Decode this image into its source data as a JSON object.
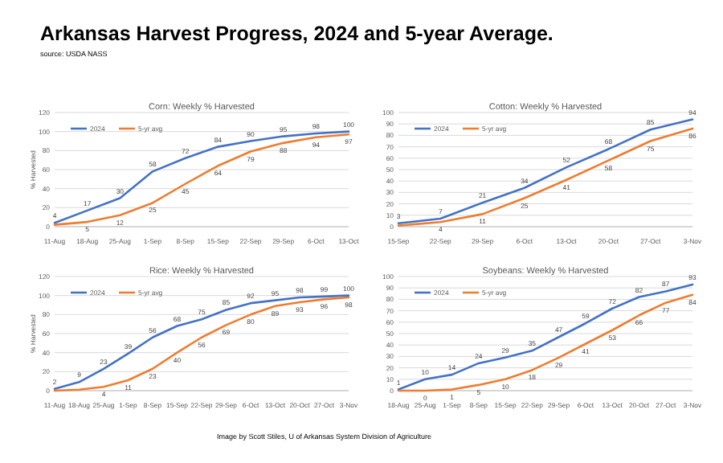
{
  "chart_data": [
    {
      "type": "other",
      "title": "Arkansas Harvest Progress, 2024 and 5-year Average.",
      "subtitle": "source: USDA NASS",
      "annotations": [
        "Image by Scott Stiles, U of Arkansas System Division of Agriculture"
      ]
    },
    {
      "type": "line",
      "title": "Corn: Weekly % Harvested",
      "ylabel": "% Harvested",
      "categories": [
        "11-Aug",
        "18-Aug",
        "25-Aug",
        "1-Sep",
        "8-Sep",
        "15-Sep",
        "22-Sep",
        "29-Sep",
        "6-Oct",
        "13-Oct"
      ],
      "ylim": [
        0,
        120
      ],
      "yticks": [
        0,
        20,
        40,
        60,
        80,
        100,
        120
      ],
      "grid": "y",
      "legend": "top left",
      "series": [
        {
          "name": "2024",
          "color": "#4472c4",
          "values": [
            4,
            17,
            30,
            58,
            72,
            84,
            90,
            95,
            98,
            100
          ],
          "value_labels": [
            "4",
            "17",
            "30",
            "58",
            "72",
            "84",
            "90",
            "95",
            "98",
            "100"
          ]
        },
        {
          "name": "5-yr avg",
          "color": "#ed7d31",
          "values": [
            2,
            5,
            12,
            25,
            45,
            64,
            79,
            88,
            94,
            97
          ],
          "value_labels": [
            null,
            "5",
            "12",
            "25",
            "45",
            "64",
            "79",
            "88",
            "94",
            "97"
          ]
        }
      ]
    },
    {
      "type": "line",
      "title": "Cotton: Weekly % Harvested",
      "categories": [
        "15-Sep",
        "22-Sep",
        "29-Sep",
        "6-Oct",
        "13-Oct",
        "20-Oct",
        "27-Oct",
        "3-Nov"
      ],
      "ylim": [
        0,
        100
      ],
      "yticks": [
        0,
        10,
        20,
        30,
        40,
        50,
        60,
        70,
        80,
        90,
        100
      ],
      "grid": "y",
      "legend": "top left",
      "series": [
        {
          "name": "2024",
          "color": "#4472c4",
          "values": [
            3,
            7,
            21,
            34,
            52,
            68,
            85,
            94
          ],
          "value_labels": [
            "3",
            "7",
            "21",
            "34",
            "52",
            "68",
            "85",
            "94"
          ]
        },
        {
          "name": "5-yr avg",
          "color": "#ed7d31",
          "values": [
            1,
            4,
            11,
            25,
            41,
            58,
            75,
            86
          ],
          "value_labels": [
            null,
            "4",
            "11",
            "25",
            "41",
            "58",
            "75",
            "86"
          ]
        }
      ]
    },
    {
      "type": "line",
      "title": "Rice: Weekly % Harvested",
      "ylabel": "% Harvested",
      "categories": [
        "11-Aug",
        "18-Aug",
        "25-Aug",
        "1-Sep",
        "8-Sep",
        "15-Sep",
        "22-Sep",
        "29-Sep",
        "6-Oct",
        "13-Oct",
        "20-Oct",
        "27-Oct",
        "3-Nov"
      ],
      "ylim": [
        0,
        120
      ],
      "yticks": [
        0,
        20,
        40,
        60,
        80,
        100,
        120
      ],
      "grid": "y",
      "legend": "top left",
      "series": [
        {
          "name": "2024",
          "color": "#4472c4",
          "values": [
            2,
            9,
            23,
            39,
            56,
            68,
            75,
            85,
            92,
            95,
            98,
            99,
            100
          ],
          "value_labels": [
            "2",
            "9",
            "23",
            "39",
            "56",
            "68",
            "75",
            "85",
            "92",
            "95",
            "98",
            "99",
            "100"
          ]
        },
        {
          "name": "5-yr avg",
          "color": "#ed7d31",
          "values": [
            0,
            1,
            4,
            11,
            23,
            40,
            56,
            69,
            80,
            89,
            93,
            96,
            98
          ],
          "value_labels": [
            null,
            null,
            "4",
            "11",
            "23",
            "40",
            "56",
            "69",
            "80",
            "89",
            "93",
            "96",
            "98"
          ]
        }
      ]
    },
    {
      "type": "line",
      "title": "Soybeans: Weekly % Harvested",
      "categories": [
        "18-Aug",
        "25-Aug",
        "1-Sep",
        "8-Sep",
        "15-Sep",
        "22-Sep",
        "29-Sep",
        "6-Oct",
        "13-Oct",
        "20-Oct",
        "27-Oct",
        "3-Nov"
      ],
      "ylim": [
        0,
        100
      ],
      "yticks": [
        0,
        10,
        20,
        30,
        40,
        50,
        60,
        70,
        80,
        90,
        100
      ],
      "grid": "y",
      "legend": "top left",
      "series": [
        {
          "name": "2024",
          "color": "#4472c4",
          "values": [
            1,
            10,
            14,
            24,
            29,
            35,
            47,
            59,
            72,
            82,
            87,
            93
          ],
          "value_labels": [
            "1",
            "10",
            "14",
            "24",
            "29",
            "35",
            "47",
            "59",
            "72",
            "82",
            "87",
            "93"
          ]
        },
        {
          "name": "5-yr avg",
          "color": "#ed7d31",
          "values": [
            0,
            0,
            1,
            5,
            10,
            18,
            29,
            41,
            53,
            66,
            77,
            84
          ],
          "value_labels": [
            null,
            "0",
            "1",
            "5",
            "10",
            "18",
            "29",
            "41",
            "53",
            "66",
            "77",
            "84"
          ]
        }
      ]
    }
  ]
}
